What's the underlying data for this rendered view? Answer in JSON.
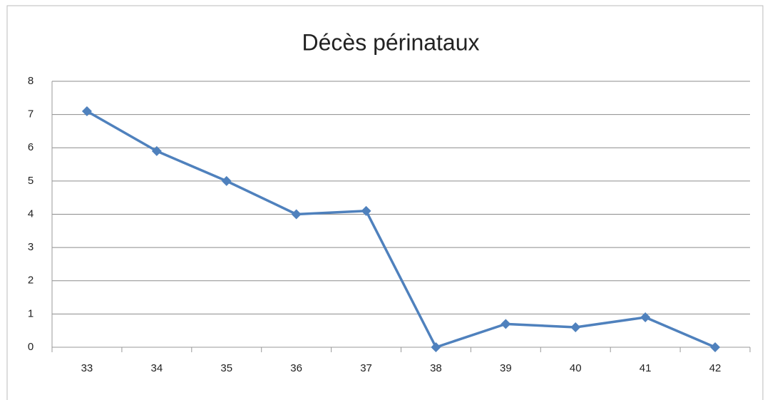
{
  "chart_data": {
    "type": "line",
    "title": "Décès périnataux",
    "categories": [
      "33",
      "34",
      "35",
      "36",
      "37",
      "38",
      "39",
      "40",
      "41",
      "42"
    ],
    "values": [
      7.1,
      5.9,
      5.0,
      4.0,
      4.1,
      0,
      0.7,
      0.6,
      0.9,
      0
    ],
    "color": "#4f81bd",
    "ylim": [
      0,
      8
    ],
    "yticks": [
      0,
      1,
      2,
      3,
      4,
      5,
      6,
      7,
      8
    ],
    "grid": true
  }
}
